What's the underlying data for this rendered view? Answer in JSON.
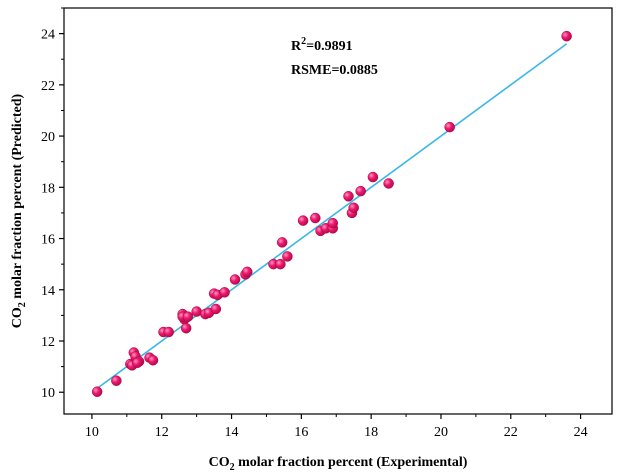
{
  "chart_data": {
    "type": "scatter",
    "title": "",
    "xlabel": {
      "prefix": "CO",
      "sub": "2",
      "suffix": " molar fraction percent (Experimental)"
    },
    "ylabel": {
      "prefix": "CO",
      "sub": "2",
      "suffix": " molar fraction percent (Predicted)"
    },
    "xlim": [
      9.2,
      24.9
    ],
    "ylim": [
      9.15,
      25.0
    ],
    "xticks": [
      10,
      12,
      14,
      16,
      18,
      20,
      22,
      24
    ],
    "yticks": [
      10,
      12,
      14,
      16,
      18,
      20,
      22,
      24
    ],
    "grid": false,
    "colors": {
      "point": "#f0186e",
      "fit_line": "#3ab7ea"
    },
    "annotations": {
      "r2": {
        "prefix": "R",
        "sup": "2",
        "suffix": "=0.9891"
      },
      "rsme": "RSME=0.0885"
    },
    "fit_line": {
      "x": [
        10.1,
        23.6
      ],
      "y": [
        10.1,
        23.6
      ]
    },
    "points": [
      [
        10.15,
        10.02
      ],
      [
        10.7,
        10.45
      ],
      [
        11.1,
        11.1
      ],
      [
        11.15,
        11.05
      ],
      [
        11.2,
        11.55
      ],
      [
        11.25,
        11.4
      ],
      [
        11.35,
        11.2
      ],
      [
        11.3,
        11.15
      ],
      [
        11.65,
        11.35
      ],
      [
        11.75,
        11.25
      ],
      [
        12.05,
        12.35
      ],
      [
        12.2,
        12.35
      ],
      [
        12.6,
        13.05
      ],
      [
        12.65,
        12.85
      ],
      [
        12.6,
        12.95
      ],
      [
        12.75,
        12.95
      ],
      [
        12.7,
        12.5
      ],
      [
        13.0,
        13.15
      ],
      [
        13.25,
        13.05
      ],
      [
        13.35,
        13.1
      ],
      [
        13.5,
        13.85
      ],
      [
        13.6,
        13.8
      ],
      [
        13.55,
        13.25
      ],
      [
        13.8,
        13.9
      ],
      [
        14.1,
        14.4
      ],
      [
        14.4,
        14.6
      ],
      [
        14.45,
        14.7
      ],
      [
        15.2,
        15.0
      ],
      [
        15.4,
        15.0
      ],
      [
        15.45,
        15.85
      ],
      [
        15.6,
        15.3
      ],
      [
        16.05,
        16.7
      ],
      [
        16.4,
        16.8
      ],
      [
        16.55,
        16.3
      ],
      [
        16.7,
        16.4
      ],
      [
        16.9,
        16.4
      ],
      [
        16.9,
        16.6
      ],
      [
        17.35,
        17.65
      ],
      [
        17.45,
        17.0
      ],
      [
        17.5,
        17.2
      ],
      [
        17.7,
        17.85
      ],
      [
        18.05,
        18.4
      ],
      [
        18.5,
        18.15
      ],
      [
        20.25,
        20.35
      ],
      [
        23.6,
        23.9
      ]
    ]
  }
}
